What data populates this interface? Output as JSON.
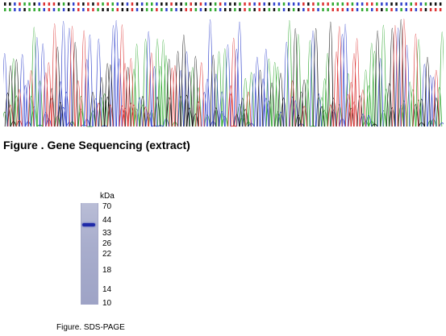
{
  "caption_sequencing": "Figure . Gene Sequencing (extract)",
  "caption_sds": "Figure. SDS-PAGE",
  "gel": {
    "unit_label": "kDa",
    "markers": [
      "70",
      "44",
      "33",
      "26",
      "22",
      "18",
      "14",
      "10"
    ],
    "band_at_kda": 40
  },
  "colors": {
    "A": "#33aa33",
    "C": "#3344cc",
    "G": "#111111",
    "T": "#dd3333",
    "band": "#1f2aa8"
  }
}
